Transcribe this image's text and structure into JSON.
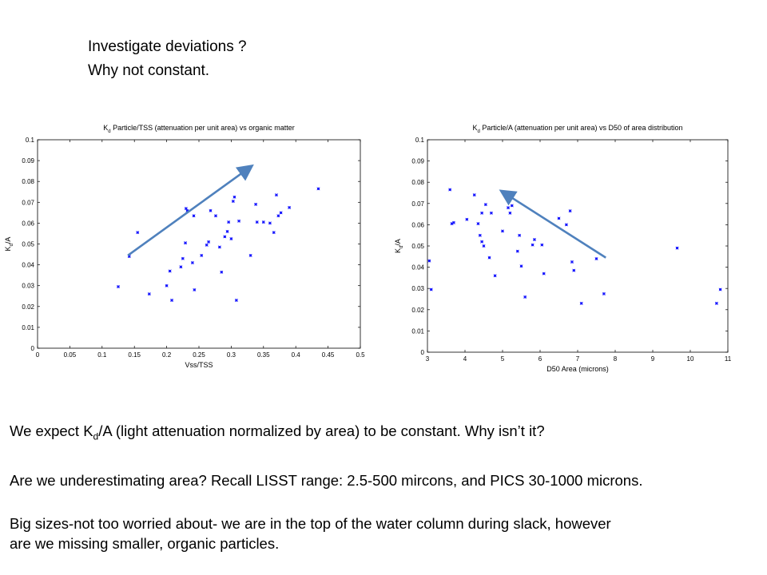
{
  "heading": {
    "line1": "Investigate deviations ?",
    "line2": "Why not constant."
  },
  "body": {
    "p1_before": "We expect K",
    "p1_sub": "d",
    "p1_after": "/A (light attenuation normalized by area) to be constant. Why isn’t it?",
    "p2": "Are we underestimating area?  Recall LISST range: 2.5-500 mircons, and PICS 30-1000 microns.",
    "p3_line1": "Big sizes-not too worried about- we are in the top of the water column during slack, however",
    "p3_line2": "are we missing smaller, organic particles."
  },
  "colors": {
    "points": "#1a1aff",
    "arrow": "#4f81bd",
    "axis": "#000000"
  },
  "chart_data": [
    {
      "type": "scatter",
      "title": "K d Particle/TSS (attenuation per unit area) vs organic matter",
      "title_pre": "K",
      "title_sub": "d",
      "title_post": " Particle/TSS (attenuation per unit area) vs organic matter",
      "xlabel": "Vss/TSS",
      "ylabel_pre": "K",
      "ylabel_sub": "d",
      "ylabel_post": "/A",
      "xlim": [
        0,
        0.5
      ],
      "ylim": [
        0,
        0.1
      ],
      "xticks": [
        "0",
        "0.05",
        "0.1",
        "0.15",
        "0.2",
        "0.25",
        "0.3",
        "0.35",
        "0.4",
        "0.45",
        "0.5"
      ],
      "yticks": [
        "0",
        "0.01",
        "0.02",
        "0.03",
        "0.04",
        "0.05",
        "0.06",
        "0.07",
        "0.08",
        "0.09",
        "0.1"
      ],
      "x": [
        0.125,
        0.142,
        0.155,
        0.173,
        0.2,
        0.205,
        0.208,
        0.222,
        0.225,
        0.229,
        0.23,
        0.232,
        0.24,
        0.242,
        0.243,
        0.254,
        0.262,
        0.265,
        0.268,
        0.276,
        0.282,
        0.285,
        0.29,
        0.294,
        0.296,
        0.3,
        0.303,
        0.305,
        0.308,
        0.312,
        0.33,
        0.338,
        0.34,
        0.35,
        0.36,
        0.366,
        0.37,
        0.373,
        0.377,
        0.39,
        0.435
      ],
      "y": [
        0.0295,
        0.044,
        0.0555,
        0.026,
        0.03,
        0.037,
        0.023,
        0.039,
        0.043,
        0.0505,
        0.067,
        0.066,
        0.041,
        0.0635,
        0.028,
        0.0445,
        0.0495,
        0.051,
        0.066,
        0.0635,
        0.0485,
        0.0365,
        0.0535,
        0.056,
        0.0605,
        0.0525,
        0.0705,
        0.0725,
        0.023,
        0.061,
        0.0445,
        0.069,
        0.0605,
        0.0605,
        0.06,
        0.0555,
        0.0735,
        0.0635,
        0.065,
        0.0675,
        0.0765
      ],
      "annotation": {
        "type": "arrow",
        "from": [
          0.14,
          0.0445
        ],
        "to": [
          0.33,
          0.087
        ]
      },
      "grid": false
    },
    {
      "type": "scatter",
      "title": "K d Particle/A (attenuation per unit area) vs D50 of area distribution",
      "title_pre": "K",
      "title_sub": "d",
      "title_post": " Particle/A (attenuation per unit area) vs D50 of area distribution",
      "xlabel": "D50 Area (microns)",
      "ylabel_pre": "K",
      "ylabel_sub": "d",
      "ylabel_post": "/A",
      "xlim": [
        3,
        11
      ],
      "ylim": [
        0,
        0.1
      ],
      "xticks": [
        "3",
        "4",
        "5",
        "6",
        "7",
        "8",
        "9",
        "10",
        "11"
      ],
      "yticks": [
        "0",
        "0.01",
        "0.02",
        "0.03",
        "0.04",
        "0.05",
        "0.06",
        "0.07",
        "0.08",
        "0.09",
        "0.1"
      ],
      "x": [
        3.05,
        3.1,
        3.6,
        3.65,
        3.7,
        4.05,
        4.25,
        4.35,
        4.4,
        4.45,
        4.45,
        4.5,
        4.55,
        4.65,
        4.7,
        4.8,
        5.0,
        5.15,
        5.2,
        5.2,
        5.25,
        5.4,
        5.45,
        5.5,
        5.6,
        5.8,
        5.85,
        6.05,
        6.1,
        6.5,
        6.7,
        6.8,
        6.85,
        6.9,
        7.1,
        7.5,
        7.7,
        9.65,
        10.7,
        10.8
      ],
      "y": [
        0.043,
        0.0295,
        0.0765,
        0.0605,
        0.061,
        0.0625,
        0.074,
        0.0605,
        0.055,
        0.052,
        0.0655,
        0.05,
        0.0695,
        0.0445,
        0.0655,
        0.036,
        0.057,
        0.068,
        0.0655,
        0.0725,
        0.069,
        0.0475,
        0.055,
        0.0405,
        0.026,
        0.0505,
        0.053,
        0.0505,
        0.037,
        0.063,
        0.06,
        0.0665,
        0.0425,
        0.0385,
        0.023,
        0.044,
        0.0275,
        0.049,
        0.023,
        0.0295
      ],
      "annotation": {
        "type": "arrow",
        "from": [
          7.75,
          0.0445
        ],
        "to": [
          5.0,
          0.0755
        ]
      },
      "grid": false
    }
  ]
}
